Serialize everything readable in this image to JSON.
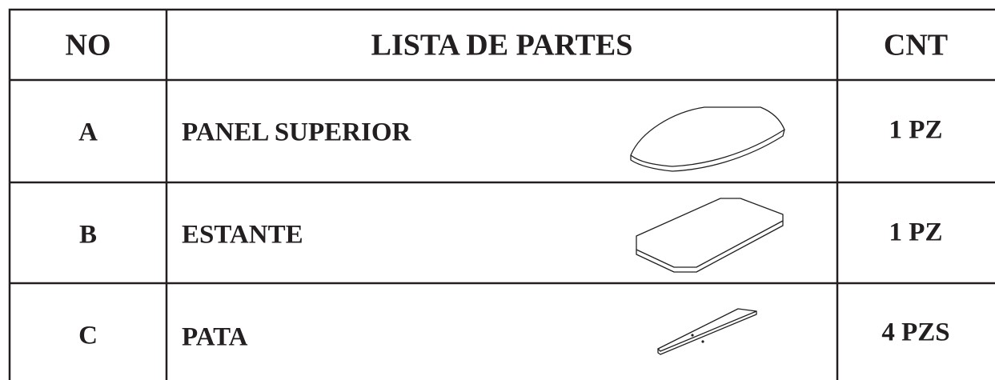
{
  "table": {
    "header": [
      "NO",
      "LISTA DE PARTES",
      "CNT"
    ],
    "rows": [
      [
        "A",
        "PANEL SUPERIOR",
        "1 PZ"
      ],
      [
        "B",
        "ESTANTE",
        "1 PZ"
      ],
      [
        "C",
        "PATA",
        "4 PZS"
      ]
    ]
  }
}
